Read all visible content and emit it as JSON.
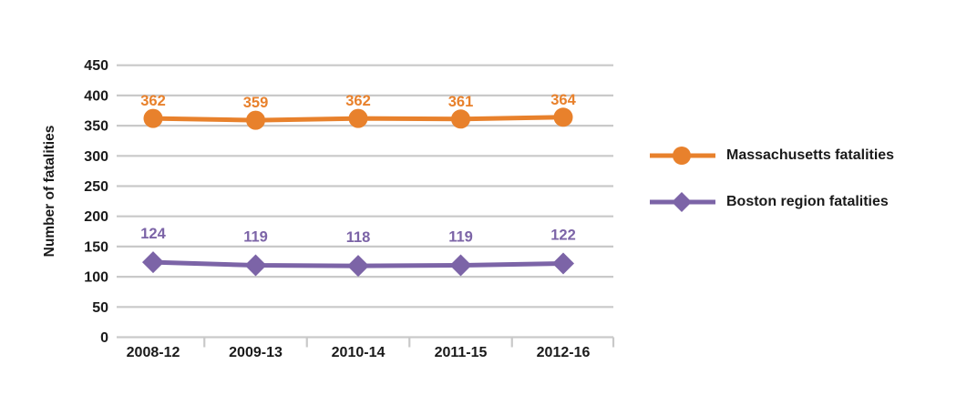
{
  "chart_data": {
    "type": "line",
    "title": "",
    "xlabel": "",
    "ylabel": "Number of fatalities",
    "categories": [
      "2008-12",
      "2009-13",
      "2010-14",
      "2011-15",
      "2012-16"
    ],
    "series": [
      {
        "name": "Massachusetts fatalities",
        "marker": "circle",
        "color": "#E8812C",
        "values": [
          362,
          359,
          362,
          361,
          364
        ]
      },
      {
        "name": "Boston region fatalities",
        "marker": "diamond",
        "color": "#7C64A7",
        "values": [
          124,
          119,
          118,
          119,
          122
        ]
      }
    ],
    "ylim": [
      0,
      450
    ],
    "ytick_step": 50,
    "grid": true,
    "legend_position": "right",
    "colors": {
      "gridline": "#C9C9C9",
      "text": "#1A1A1A",
      "background": "#FFFFFF"
    }
  }
}
